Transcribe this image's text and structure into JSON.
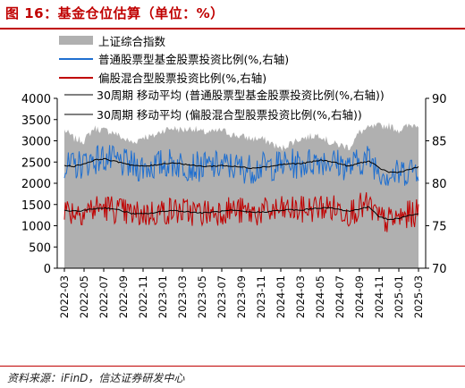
{
  "title": "图 16：基金仓位估算（单位：%）",
  "source": "资料来源：iFinD，信达证券研发中心",
  "chart_data": {
    "type": "area+line",
    "title": "",
    "xlabel": "",
    "ylabel_left": "",
    "ylabel_right": "",
    "x_ticks": [
      "2022-03",
      "2022-05",
      "2022-07",
      "2022-09",
      "2022-11",
      "2023-01",
      "2023-03",
      "2023-05",
      "2023-07",
      "2023-09",
      "2023-11",
      "2024-01",
      "2024-03",
      "2024-05",
      "2024-07",
      "2024-09",
      "2024-11",
      "2025-01",
      "2025-03"
    ],
    "y_left": {
      "min": 0,
      "max": 4000,
      "ticks": [
        0,
        500,
        1000,
        1500,
        2000,
        2500,
        3000,
        3500,
        4000
      ]
    },
    "y_right": {
      "min": 70,
      "max": 90,
      "ticks": [
        70,
        75,
        80,
        85,
        90
      ]
    },
    "legend": [
      {
        "name": "上证综合指数",
        "color": "#b0b0b0",
        "kind": "area"
      },
      {
        "name": "普通股票型基金股票投资比例(%,右轴)",
        "color": "#1f6fd0",
        "kind": "line"
      },
      {
        "name": "偏股混合型股票投资比例(%,右轴)",
        "color": "#c00000",
        "kind": "line"
      },
      {
        "name": "30周期 移动平均 (普通股票型基金股票投资比例(%,右轴))",
        "color": "#000000",
        "kind": "line"
      },
      {
        "name": "30周期 移动平均 (偏股混合型股票投资比例(%,右轴))",
        "color": "#000000",
        "kind": "line"
      }
    ],
    "series": [
      {
        "name": "上证综合指数",
        "axis": "left",
        "x": [
          "2022-03",
          "2022-04",
          "2022-05",
          "2022-06",
          "2022-07",
          "2022-08",
          "2022-09",
          "2022-10",
          "2022-11",
          "2022-12",
          "2023-01",
          "2023-02",
          "2023-03",
          "2023-04",
          "2023-05",
          "2023-06",
          "2023-07",
          "2023-08",
          "2023-09",
          "2023-10",
          "2023-11",
          "2023-12",
          "2024-01",
          "2024-02",
          "2024-03",
          "2024-04",
          "2024-05",
          "2024-06",
          "2024-07",
          "2024-08",
          "2024-09",
          "2024-10",
          "2024-11",
          "2024-12",
          "2025-01",
          "2025-02",
          "2025-03"
        ],
        "values": [
          3250,
          3050,
          3000,
          3300,
          3250,
          3200,
          3050,
          2950,
          3100,
          3100,
          3250,
          3300,
          3250,
          3300,
          3200,
          3200,
          3250,
          3150,
          3100,
          3050,
          3050,
          2950,
          2800,
          2950,
          3050,
          3100,
          3150,
          2950,
          2900,
          2850,
          3200,
          3300,
          3350,
          3350,
          3250,
          3350,
          3400
        ]
      },
      {
        "name": "普通股票型基金股票投资比例(%,右轴)",
        "axis": "right",
        "x": [
          "2022-03",
          "2022-04",
          "2022-05",
          "2022-06",
          "2022-07",
          "2022-08",
          "2022-09",
          "2022-10",
          "2022-11",
          "2022-12",
          "2023-01",
          "2023-02",
          "2023-03",
          "2023-04",
          "2023-05",
          "2023-06",
          "2023-07",
          "2023-08",
          "2023-09",
          "2023-10",
          "2023-11",
          "2023-12",
          "2024-01",
          "2024-02",
          "2024-03",
          "2024-04",
          "2024-05",
          "2024-06",
          "2024-07",
          "2024-08",
          "2024-09",
          "2024-10",
          "2024-11",
          "2024-12",
          "2025-01",
          "2025-02",
          "2025-03"
        ],
        "values": [
          81.8,
          82.0,
          82.4,
          82.8,
          83.0,
          82.6,
          82.3,
          82.0,
          81.9,
          82.0,
          82.3,
          82.4,
          82.2,
          82.0,
          81.9,
          82.0,
          82.1,
          82.0,
          81.8,
          81.7,
          81.9,
          82.0,
          82.2,
          82.3,
          82.2,
          82.5,
          82.8,
          82.6,
          82.3,
          81.9,
          82.6,
          82.9,
          81.6,
          81.0,
          81.1,
          81.6,
          81.9
        ]
      },
      {
        "name": "偏股混合型股票投资比例(%,右轴)",
        "axis": "right",
        "x": [
          "2022-03",
          "2022-04",
          "2022-05",
          "2022-06",
          "2022-07",
          "2022-08",
          "2022-09",
          "2022-10",
          "2022-11",
          "2022-12",
          "2023-01",
          "2023-02",
          "2023-03",
          "2023-04",
          "2023-05",
          "2023-06",
          "2023-07",
          "2023-08",
          "2023-09",
          "2023-10",
          "2023-11",
          "2023-12",
          "2024-01",
          "2024-02",
          "2024-03",
          "2024-04",
          "2024-05",
          "2024-06",
          "2024-07",
          "2024-08",
          "2024-09",
          "2024-10",
          "2024-11",
          "2024-12",
          "2025-01",
          "2025-02",
          "2025-03"
        ],
        "values": [
          76.9,
          76.7,
          76.8,
          77.0,
          77.2,
          77.0,
          76.6,
          76.3,
          76.4,
          76.5,
          76.7,
          76.8,
          76.7,
          76.6,
          76.5,
          76.6,
          76.8,
          76.9,
          76.7,
          76.5,
          76.6,
          76.7,
          76.8,
          76.9,
          76.8,
          77.0,
          77.2,
          77.1,
          76.9,
          76.6,
          77.2,
          77.3,
          75.8,
          75.6,
          75.9,
          76.3,
          76.5
        ]
      },
      {
        "name": "30周期 移动平均 (普通股票型基金股票投资比例(%,右轴))",
        "axis": "right",
        "x": [
          "2022-03",
          "2022-04",
          "2022-05",
          "2022-06",
          "2022-07",
          "2022-08",
          "2022-09",
          "2022-10",
          "2022-11",
          "2022-12",
          "2023-01",
          "2023-02",
          "2023-03",
          "2023-04",
          "2023-05",
          "2023-06",
          "2023-07",
          "2023-08",
          "2023-09",
          "2023-10",
          "2023-11",
          "2023-12",
          "2024-01",
          "2024-02",
          "2024-03",
          "2024-04",
          "2024-05",
          "2024-06",
          "2024-07",
          "2024-08",
          "2024-09",
          "2024-10",
          "2024-11",
          "2024-12",
          "2025-01",
          "2025-02",
          "2025-03"
        ],
        "values": [
          82.1,
          82.0,
          82.3,
          82.7,
          82.9,
          82.6,
          82.4,
          82.1,
          82.0,
          82.1,
          82.3,
          82.4,
          82.3,
          82.1,
          82.0,
          82.0,
          82.1,
          82.0,
          81.9,
          81.8,
          81.9,
          82.0,
          82.2,
          82.3,
          82.3,
          82.5,
          82.7,
          82.6,
          82.3,
          82.0,
          82.4,
          82.6,
          81.8,
          81.3,
          81.3,
          81.6,
          81.9
        ]
      },
      {
        "name": "30周期 移动平均 (偏股混合型股票投资比例(%,右轴))",
        "axis": "right",
        "x": [
          "2022-03",
          "2022-04",
          "2022-05",
          "2022-06",
          "2022-07",
          "2022-08",
          "2022-09",
          "2022-10",
          "2022-11",
          "2022-12",
          "2023-01",
          "2023-02",
          "2023-03",
          "2023-04",
          "2023-05",
          "2023-06",
          "2023-07",
          "2023-08",
          "2023-09",
          "2023-10",
          "2023-11",
          "2023-12",
          "2024-01",
          "2024-02",
          "2024-03",
          "2024-04",
          "2024-05",
          "2024-06",
          "2024-07",
          "2024-08",
          "2024-09",
          "2024-10",
          "2024-11",
          "2024-12",
          "2025-01",
          "2025-02",
          "2025-03"
        ],
        "values": [
          76.8,
          76.7,
          76.8,
          77.0,
          77.1,
          77.0,
          76.7,
          76.4,
          76.4,
          76.5,
          76.7,
          76.8,
          76.7,
          76.6,
          76.5,
          76.6,
          76.7,
          76.8,
          76.7,
          76.6,
          76.6,
          76.7,
          76.8,
          76.9,
          76.8,
          77.0,
          77.1,
          77.1,
          76.9,
          76.7,
          77.0,
          77.2,
          76.1,
          75.7,
          75.9,
          76.2,
          76.4
        ]
      }
    ]
  }
}
